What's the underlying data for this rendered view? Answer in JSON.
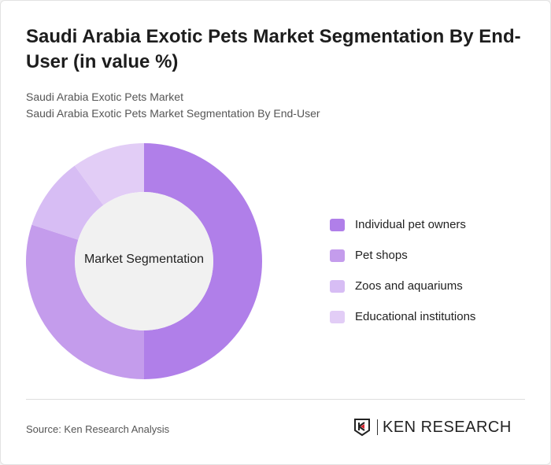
{
  "title": "Saudi Arabia Exotic Pets Market Segmentation By End-User (in value %)",
  "subtitle1": "Saudi Arabia Exotic Pets Market",
  "subtitle2": "Saudi Arabia Exotic Pets Market Segmentation By End-User",
  "source": "Source: Ken Research Analysis",
  "logo_text": "KEN RESEARCH",
  "chart_data": {
    "type": "pie",
    "center_label": "Market Segmentation",
    "legend_position": "right",
    "categories": [
      "Individual pet owners",
      "Pet shops",
      "Zoos and aquariums",
      "Educational institutions"
    ],
    "values": [
      50,
      30,
      10,
      10
    ],
    "colors": [
      "#b07fe9",
      "#c49cec",
      "#d7bdf4",
      "#e2cdf6"
    ]
  }
}
